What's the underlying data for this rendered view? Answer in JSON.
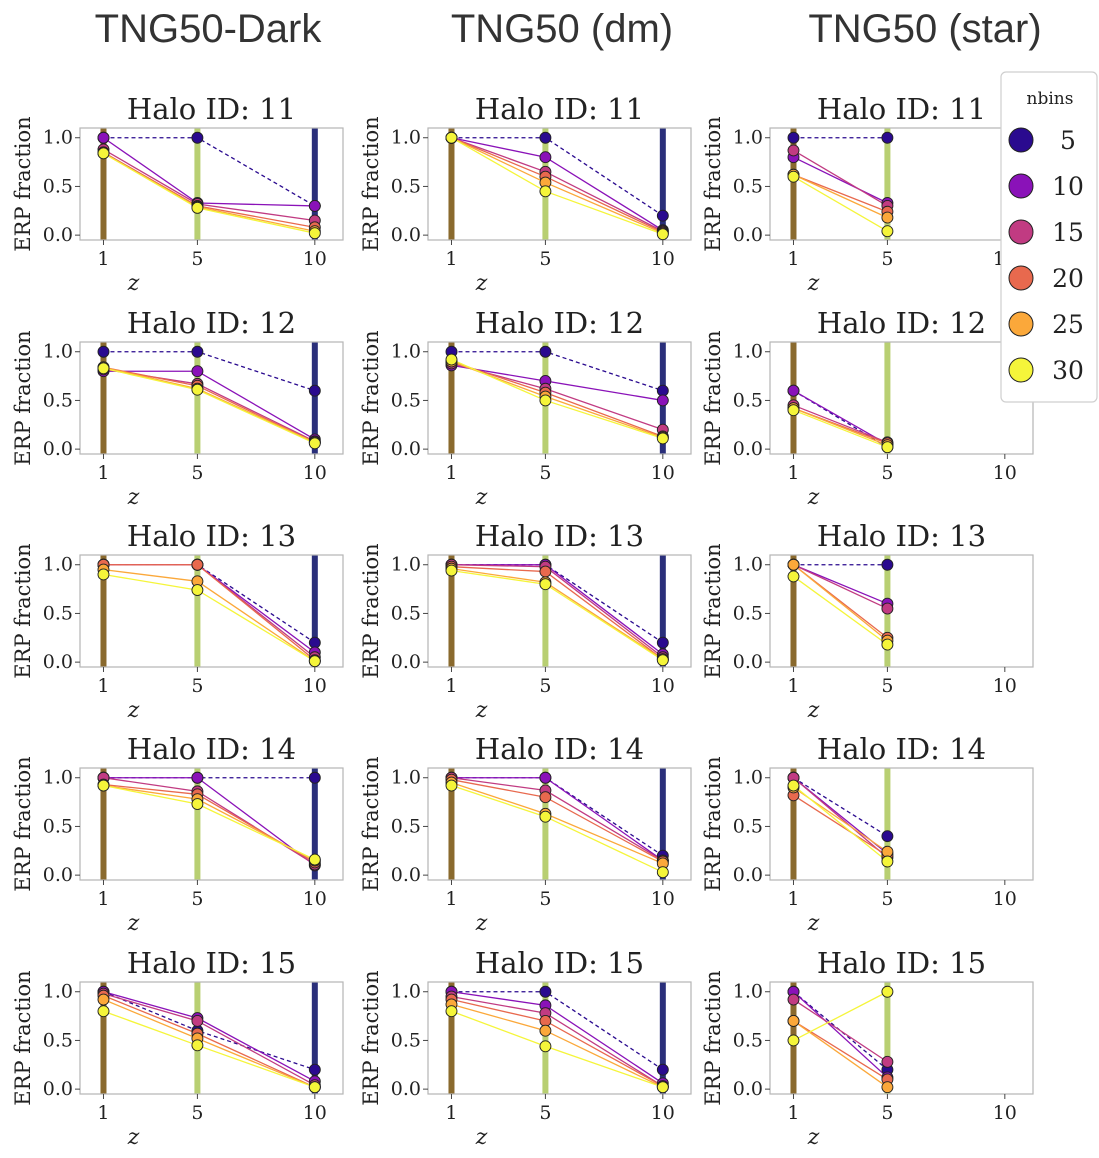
{
  "figure": {
    "column_titles": [
      "TNG50-Dark",
      "TNG50 (dm)",
      "TNG50 (star)"
    ],
    "colors": {
      "z1": "#8a6a2e",
      "z5": "#b8cf72",
      "z10": "#2a2f7a"
    }
  },
  "chart_data": {
    "type": "line",
    "xlabel": "z",
    "ylabel": "ERP fraction",
    "x_ticks": [
      1,
      5,
      10
    ],
    "y_ticks": [
      "0.0",
      "0.5",
      "1.0"
    ],
    "xlim": [
      0,
      11.2
    ],
    "ylim": [
      -0.05,
      1.1
    ],
    "legend": {
      "title": "nbins",
      "placement": "right",
      "entries": [
        {
          "label": "5",
          "color": "#2a0a8f"
        },
        {
          "label": "10",
          "color": "#8a12b8"
        },
        {
          "label": "15",
          "color": "#c13b82"
        },
        {
          "label": "20",
          "color": "#e8694e"
        },
        {
          "label": "25",
          "color": "#fba83a"
        },
        {
          "label": "30",
          "color": "#f5f53a"
        }
      ]
    },
    "panels": [
      {
        "col": 0,
        "title": "Halo ID: 11",
        "x": [
          1,
          5,
          10
        ],
        "series": [
          [
            1.0,
            1.0,
            0.3
          ],
          [
            1.0,
            0.33,
            0.3
          ],
          [
            0.88,
            0.32,
            0.15
          ],
          [
            0.85,
            0.3,
            0.08
          ],
          [
            0.84,
            0.29,
            0.04
          ],
          [
            0.84,
            0.28,
            0.02
          ]
        ]
      },
      {
        "col": 0,
        "title": "Halo ID: 12",
        "x": [
          1,
          5,
          10
        ],
        "series": [
          [
            1.0,
            1.0,
            0.6
          ],
          [
            0.8,
            0.8,
            0.1
          ],
          [
            0.82,
            0.67,
            0.08
          ],
          [
            0.84,
            0.65,
            0.07
          ],
          [
            0.84,
            0.62,
            0.07
          ],
          [
            0.83,
            0.61,
            0.06
          ]
        ]
      },
      {
        "col": 0,
        "title": "Halo ID: 13",
        "x": [
          1,
          5,
          10
        ],
        "series": [
          [
            1.0,
            1.0,
            0.2
          ],
          [
            1.0,
            1.0,
            0.1
          ],
          [
            1.0,
            1.0,
            0.05
          ],
          [
            1.0,
            1.0,
            0.02
          ],
          [
            0.95,
            0.83,
            0.01
          ],
          [
            0.9,
            0.74,
            0.01
          ]
        ]
      },
      {
        "col": 0,
        "title": "Halo ID: 14",
        "x": [
          1,
          5,
          10
        ],
        "series": [
          [
            1.0,
            1.0,
            1.0
          ],
          [
            1.0,
            1.0,
            0.1
          ],
          [
            1.0,
            0.86,
            0.11
          ],
          [
            0.93,
            0.83,
            0.13
          ],
          [
            0.92,
            0.78,
            0.15
          ],
          [
            0.92,
            0.73,
            0.16
          ]
        ]
      },
      {
        "col": 0,
        "title": "Halo ID: 15",
        "x": [
          1,
          5,
          10
        ],
        "series": [
          [
            1.0,
            0.6,
            0.2
          ],
          [
            1.0,
            0.73,
            0.08
          ],
          [
            0.98,
            0.7,
            0.04
          ],
          [
            0.96,
            0.57,
            0.02
          ],
          [
            0.92,
            0.52,
            0.02
          ],
          [
            0.8,
            0.45,
            0.02
          ]
        ]
      },
      {
        "col": 1,
        "title": "Halo ID: 11",
        "x": [
          1,
          5,
          10
        ],
        "series": [
          [
            1.0,
            1.0,
            0.2
          ],
          [
            1.0,
            0.8,
            0.05
          ],
          [
            1.0,
            0.65,
            0.04
          ],
          [
            1.0,
            0.6,
            0.03
          ],
          [
            1.0,
            0.54,
            0.02
          ],
          [
            1.0,
            0.45,
            0.01
          ]
        ]
      },
      {
        "col": 1,
        "title": "Halo ID: 12",
        "x": [
          1,
          5,
          10
        ],
        "series": [
          [
            1.0,
            1.0,
            0.6
          ],
          [
            0.86,
            0.7,
            0.5
          ],
          [
            0.88,
            0.62,
            0.2
          ],
          [
            0.9,
            0.58,
            0.13
          ],
          [
            0.9,
            0.54,
            0.12
          ],
          [
            0.92,
            0.5,
            0.11
          ]
        ]
      },
      {
        "col": 1,
        "title": "Halo ID: 13",
        "x": [
          1,
          5,
          10
        ],
        "series": [
          [
            1.0,
            1.0,
            0.2
          ],
          [
            1.0,
            1.0,
            0.08
          ],
          [
            1.0,
            0.98,
            0.05
          ],
          [
            0.98,
            0.93,
            0.03
          ],
          [
            0.96,
            0.82,
            0.03
          ],
          [
            0.94,
            0.8,
            0.02
          ]
        ]
      },
      {
        "col": 1,
        "title": "Halo ID: 14",
        "x": [
          1,
          5,
          10
        ],
        "series": [
          [
            1.0,
            1.0,
            0.2
          ],
          [
            1.0,
            1.0,
            0.15
          ],
          [
            1.0,
            0.87,
            0.15
          ],
          [
            0.98,
            0.8,
            0.14
          ],
          [
            0.95,
            0.63,
            0.12
          ],
          [
            0.92,
            0.6,
            0.03
          ]
        ]
      },
      {
        "col": 1,
        "title": "Halo ID: 15",
        "x": [
          1,
          5,
          10
        ],
        "series": [
          [
            1.0,
            1.0,
            0.2
          ],
          [
            1.0,
            0.86,
            0.06
          ],
          [
            0.95,
            0.78,
            0.03
          ],
          [
            0.92,
            0.7,
            0.03
          ],
          [
            0.87,
            0.6,
            0.02
          ],
          [
            0.8,
            0.44,
            0.02
          ]
        ]
      },
      {
        "col": 2,
        "title": "Halo ID: 11",
        "x": [
          1,
          5
        ],
        "series": [
          [
            1.0,
            1.0
          ],
          [
            0.8,
            0.33
          ],
          [
            0.87,
            0.3
          ],
          [
            0.62,
            0.24
          ],
          [
            0.62,
            0.18
          ],
          [
            0.6,
            0.04
          ]
        ]
      },
      {
        "col": 2,
        "title": "Halo ID: 12",
        "x": [
          1,
          5
        ],
        "series": [
          [
            0.6,
            0.02
          ],
          [
            0.6,
            0.05
          ],
          [
            0.45,
            0.07
          ],
          [
            0.42,
            0.06
          ],
          [
            0.42,
            0.04
          ],
          [
            0.4,
            0.02
          ]
        ]
      },
      {
        "col": 2,
        "title": "Halo ID: 13",
        "x": [
          1,
          5
        ],
        "series": [
          [
            1.0,
            1.0
          ],
          [
            1.0,
            0.6
          ],
          [
            1.0,
            0.55
          ],
          [
            1.0,
            0.25
          ],
          [
            1.0,
            0.22
          ],
          [
            0.88,
            0.18
          ]
        ]
      },
      {
        "col": 2,
        "title": "Halo ID: 14",
        "x": [
          1,
          5
        ],
        "series": [
          [
            1.0,
            0.4
          ],
          [
            1.0,
            0.22
          ],
          [
            1.0,
            0.18
          ],
          [
            0.82,
            0.2
          ],
          [
            0.9,
            0.24
          ],
          [
            0.92,
            0.14
          ]
        ]
      },
      {
        "col": 2,
        "title": "Halo ID: 15",
        "x": [
          1,
          5
        ],
        "series": [
          [
            1.0,
            0.2
          ],
          [
            1.0,
            0.12
          ],
          [
            0.92,
            0.28
          ],
          [
            0.7,
            0.1
          ],
          [
            0.7,
            0.02
          ],
          [
            0.5,
            1.0
          ]
        ]
      }
    ]
  }
}
